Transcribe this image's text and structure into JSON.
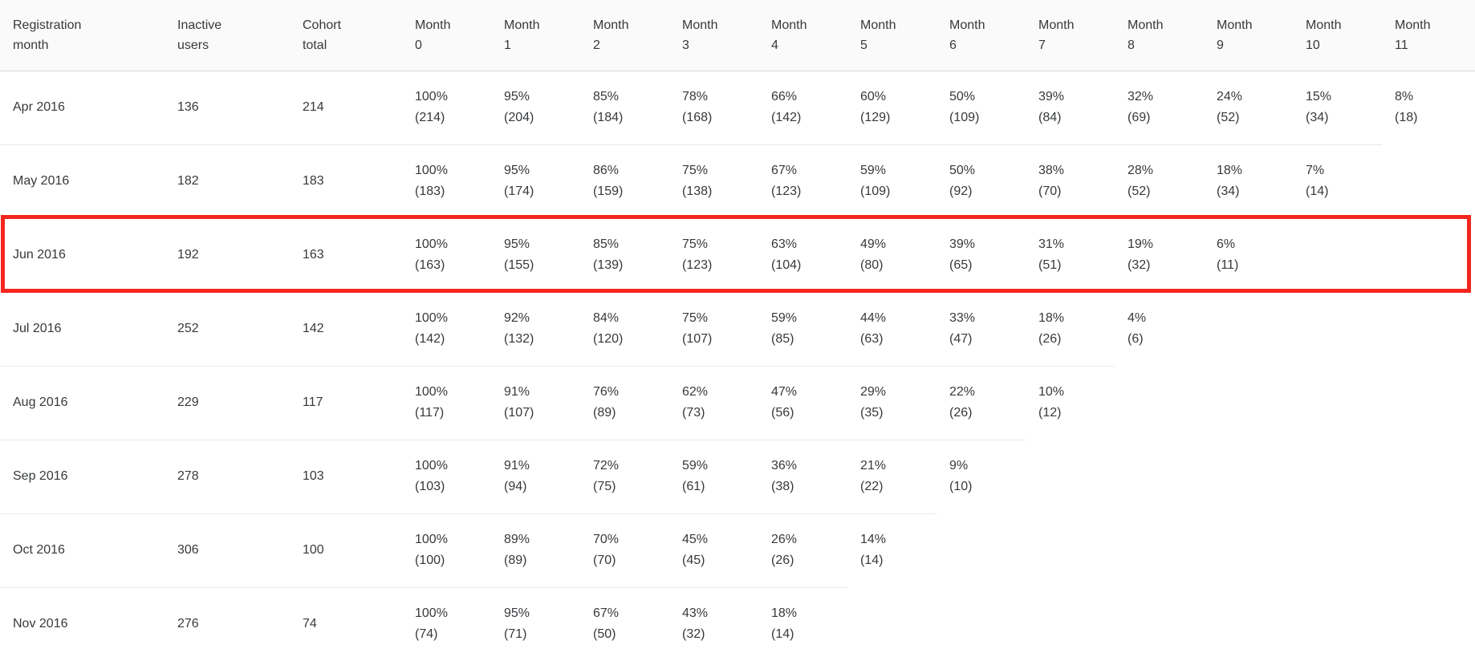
{
  "table": {
    "columns": [
      {
        "line1": "Registration",
        "line2": "month"
      },
      {
        "line1": "Inactive",
        "line2": "users"
      },
      {
        "line1": "Cohort",
        "line2": "total"
      },
      {
        "line1": "Month",
        "line2": "0"
      },
      {
        "line1": "Month",
        "line2": "1"
      },
      {
        "line1": "Month",
        "line2": "2"
      },
      {
        "line1": "Month",
        "line2": "3"
      },
      {
        "line1": "Month",
        "line2": "4"
      },
      {
        "line1": "Month",
        "line2": "5"
      },
      {
        "line1": "Month",
        "line2": "6"
      },
      {
        "line1": "Month",
        "line2": "7"
      },
      {
        "line1": "Month",
        "line2": "8"
      },
      {
        "line1": "Month",
        "line2": "9"
      },
      {
        "line1": "Month",
        "line2": "10"
      },
      {
        "line1": "Month",
        "line2": "11"
      }
    ],
    "rows": [
      {
        "month": "Apr 2016",
        "inactive_users": "136",
        "cohort_total": "214",
        "cells": [
          {
            "pct": "100%",
            "count": "(214)"
          },
          {
            "pct": "95%",
            "count": "(204)"
          },
          {
            "pct": "85%",
            "count": "(184)"
          },
          {
            "pct": "78%",
            "count": "(168)"
          },
          {
            "pct": "66%",
            "count": "(142)"
          },
          {
            "pct": "60%",
            "count": "(129)"
          },
          {
            "pct": "50%",
            "count": "(109)"
          },
          {
            "pct": "39%",
            "count": "(84)"
          },
          {
            "pct": "32%",
            "count": "(69)"
          },
          {
            "pct": "24%",
            "count": "(52)"
          },
          {
            "pct": "15%",
            "count": "(34)"
          },
          {
            "pct": "8%",
            "count": "(18)"
          }
        ]
      },
      {
        "month": "May 2016",
        "inactive_users": "182",
        "cohort_total": "183",
        "cells": [
          {
            "pct": "100%",
            "count": "(183)"
          },
          {
            "pct": "95%",
            "count": "(174)"
          },
          {
            "pct": "86%",
            "count": "(159)"
          },
          {
            "pct": "75%",
            "count": "(138)"
          },
          {
            "pct": "67%",
            "count": "(123)"
          },
          {
            "pct": "59%",
            "count": "(109)"
          },
          {
            "pct": "50%",
            "count": "(92)"
          },
          {
            "pct": "38%",
            "count": "(70)"
          },
          {
            "pct": "28%",
            "count": "(52)"
          },
          {
            "pct": "18%",
            "count": "(34)"
          },
          {
            "pct": "7%",
            "count": "(14)"
          }
        ]
      },
      {
        "month": "Jun 2016",
        "inactive_users": "192",
        "cohort_total": "163",
        "cells": [
          {
            "pct": "100%",
            "count": "(163)"
          },
          {
            "pct": "95%",
            "count": "(155)"
          },
          {
            "pct": "85%",
            "count": "(139)"
          },
          {
            "pct": "75%",
            "count": "(123)"
          },
          {
            "pct": "63%",
            "count": "(104)"
          },
          {
            "pct": "49%",
            "count": "(80)"
          },
          {
            "pct": "39%",
            "count": "(65)"
          },
          {
            "pct": "31%",
            "count": "(51)"
          },
          {
            "pct": "19%",
            "count": "(32)"
          },
          {
            "pct": "6%",
            "count": "(11)"
          }
        ]
      },
      {
        "month": "Jul 2016",
        "inactive_users": "252",
        "cohort_total": "142",
        "cells": [
          {
            "pct": "100%",
            "count": "(142)"
          },
          {
            "pct": "92%",
            "count": "(132)"
          },
          {
            "pct": "84%",
            "count": "(120)"
          },
          {
            "pct": "75%",
            "count": "(107)"
          },
          {
            "pct": "59%",
            "count": "(85)"
          },
          {
            "pct": "44%",
            "count": "(63)"
          },
          {
            "pct": "33%",
            "count": "(47)"
          },
          {
            "pct": "18%",
            "count": "(26)"
          },
          {
            "pct": "4%",
            "count": "(6)"
          }
        ]
      },
      {
        "month": "Aug 2016",
        "inactive_users": "229",
        "cohort_total": "117",
        "cells": [
          {
            "pct": "100%",
            "count": "(117)"
          },
          {
            "pct": "91%",
            "count": "(107)"
          },
          {
            "pct": "76%",
            "count": "(89)"
          },
          {
            "pct": "62%",
            "count": "(73)"
          },
          {
            "pct": "47%",
            "count": "(56)"
          },
          {
            "pct": "29%",
            "count": "(35)"
          },
          {
            "pct": "22%",
            "count": "(26)"
          },
          {
            "pct": "10%",
            "count": "(12)"
          }
        ]
      },
      {
        "month": "Sep 2016",
        "inactive_users": "278",
        "cohort_total": "103",
        "cells": [
          {
            "pct": "100%",
            "count": "(103)"
          },
          {
            "pct": "91%",
            "count": "(94)"
          },
          {
            "pct": "72%",
            "count": "(75)"
          },
          {
            "pct": "59%",
            "count": "(61)"
          },
          {
            "pct": "36%",
            "count": "(38)"
          },
          {
            "pct": "21%",
            "count": "(22)"
          },
          {
            "pct": "9%",
            "count": "(10)"
          }
        ]
      },
      {
        "month": "Oct 2016",
        "inactive_users": "306",
        "cohort_total": "100",
        "cells": [
          {
            "pct": "100%",
            "count": "(100)"
          },
          {
            "pct": "89%",
            "count": "(89)"
          },
          {
            "pct": "70%",
            "count": "(70)"
          },
          {
            "pct": "45%",
            "count": "(45)"
          },
          {
            "pct": "26%",
            "count": "(26)"
          },
          {
            "pct": "14%",
            "count": "(14)"
          }
        ]
      },
      {
        "month": "Nov 2016",
        "inactive_users": "276",
        "cohort_total": "74",
        "cells": [
          {
            "pct": "100%",
            "count": "(74)"
          },
          {
            "pct": "95%",
            "count": "(71)"
          },
          {
            "pct": "67%",
            "count": "(50)"
          },
          {
            "pct": "43%",
            "count": "(32)"
          },
          {
            "pct": "18%",
            "count": "(14)"
          }
        ]
      }
    ]
  },
  "highlight": {
    "highlighted_row": "Jun 2016",
    "color": "#f5261d"
  }
}
